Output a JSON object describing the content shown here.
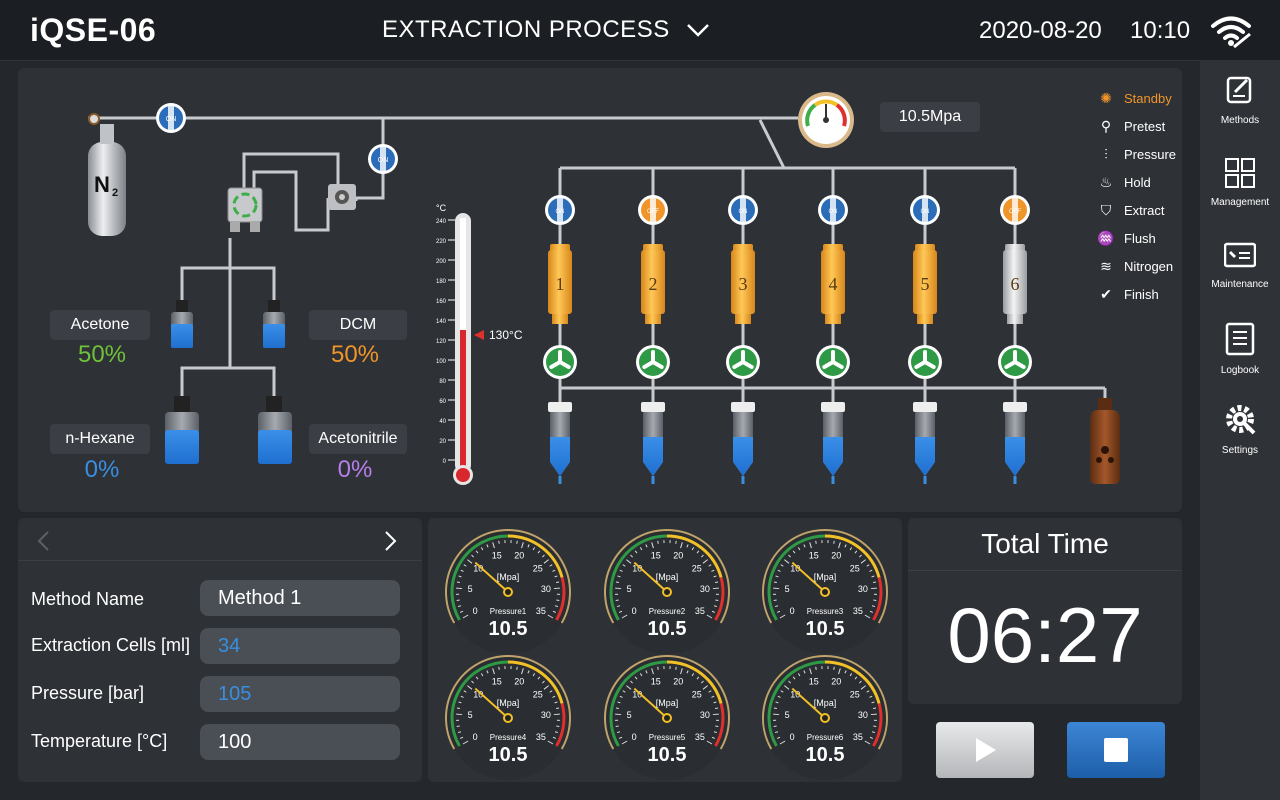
{
  "header": {
    "app_title": "iQSE-06",
    "process_title": "EXTRACTION PROCESS",
    "date": "2020-08-20",
    "time": "10:10"
  },
  "sidebar": {
    "items": [
      {
        "label": "Methods",
        "icon": "edit-icon"
      },
      {
        "label": "Management",
        "icon": "grid-icon"
      },
      {
        "label": "Maintenance",
        "icon": "maintenance-icon"
      },
      {
        "label": "Logbook",
        "icon": "logbook-icon"
      },
      {
        "label": "Settings",
        "icon": "settings-icon"
      }
    ]
  },
  "process": {
    "gas_label": "N",
    "gas_subscript": "2",
    "pressure_readout": "10.5Mpa",
    "solvents": [
      {
        "name": "Acetone",
        "percent": "50%",
        "color": "#6fc13a"
      },
      {
        "name": "DCM",
        "percent": "50%",
        "color": "#f0952a"
      },
      {
        "name": "n-Hexane",
        "percent": "0%",
        "color": "#3a8ee0"
      },
      {
        "name": "Acetonitrile",
        "percent": "0%",
        "color": "#b77ee8"
      }
    ],
    "thermometer": {
      "unit": "°C",
      "ticks": [
        "240",
        "220",
        "200",
        "180",
        "160",
        "140",
        "120",
        "100",
        "80",
        "60",
        "40",
        "20",
        "0"
      ],
      "reading_label": "130°C",
      "reading_value": 130,
      "max": 240
    },
    "valves": [
      "ON",
      "OFF",
      "ON",
      "ON",
      "ON",
      "OFF"
    ],
    "main_valve": "ON",
    "secondary_valve": "ON",
    "cells": [
      "1",
      "2",
      "3",
      "4",
      "5",
      "6"
    ],
    "cell_colors": [
      "#f4a52c",
      "#f4a52c",
      "#f4a52c",
      "#f4a52c",
      "#f4a52c",
      "#d9d9d9"
    ],
    "vial_fill": [
      0.5,
      0.5,
      0.5,
      0.5,
      0.5,
      0.5
    ]
  },
  "legend": {
    "items": [
      {
        "label": "Standby",
        "icon": "standby-icon",
        "active": true
      },
      {
        "label": "Pretest",
        "icon": "pretest-icon",
        "active": false
      },
      {
        "label": "Pressure",
        "icon": "pressure-icon",
        "active": false
      },
      {
        "label": "Hold",
        "icon": "hold-icon",
        "active": false
      },
      {
        "label": "Extract",
        "icon": "extract-icon",
        "active": false
      },
      {
        "label": "Flush",
        "icon": "flush-icon",
        "active": false
      },
      {
        "label": "Nitrogen",
        "icon": "nitrogen-icon",
        "active": false
      },
      {
        "label": "Finish",
        "icon": "finish-icon",
        "active": false
      }
    ],
    "active_color": "#f0952a"
  },
  "method": {
    "fields": [
      {
        "label": "Method Name",
        "value": "Method 1",
        "highlight": false
      },
      {
        "label": "Extraction Cells [ml]",
        "value": "34",
        "highlight": true
      },
      {
        "label": "Pressure [bar]",
        "value": "105",
        "highlight": true
      },
      {
        "label": "Temperature [°C]",
        "value": "100",
        "highlight": false
      }
    ]
  },
  "gauges": {
    "unit": "[Mpa]",
    "scale": [
      "0",
      "5",
      "10",
      "15",
      "20",
      "25",
      "30",
      "35"
    ],
    "items": [
      {
        "label": "Pressure1",
        "value": "10.5"
      },
      {
        "label": "Pressure2",
        "value": "10.5"
      },
      {
        "label": "Pressure3",
        "value": "10.5"
      },
      {
        "label": "Pressure4",
        "value": "10.5"
      },
      {
        "label": "Pressure5",
        "value": "10.5"
      },
      {
        "label": "Pressure6",
        "value": "10.5"
      }
    ]
  },
  "timer": {
    "title": "Total Time",
    "value": "06:27"
  }
}
